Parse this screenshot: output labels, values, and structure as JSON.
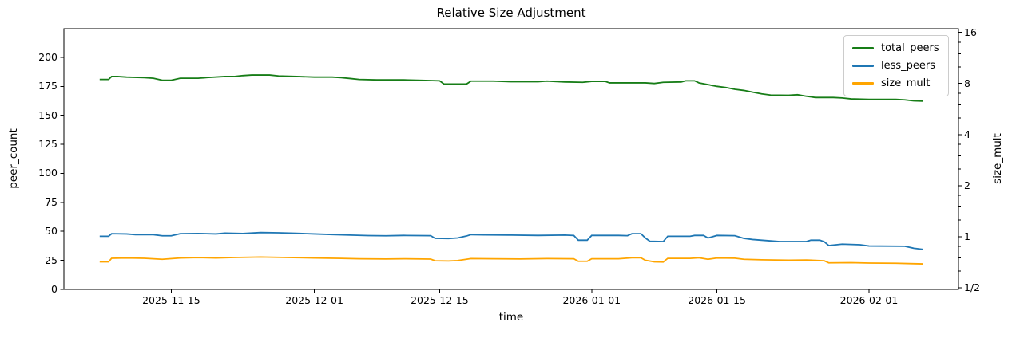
{
  "chart_data": {
    "type": "line",
    "title": "Relative Size Adjustment",
    "xlabel": "time",
    "ylabel_left": "peer_count",
    "ylabel_right": "size_mult",
    "grid": false,
    "legend_position": "upper right",
    "x_axis": {
      "type": "date",
      "domain": [
        "2025-11-03",
        "2026-02-11"
      ],
      "ticks": [
        {
          "value": "2025-11-15",
          "label": "2025-11-15"
        },
        {
          "value": "2025-12-01",
          "label": "2025-12-01"
        },
        {
          "value": "2025-12-15",
          "label": "2025-12-15"
        },
        {
          "value": "2026-01-01",
          "label": "2026-01-01"
        },
        {
          "value": "2026-01-15",
          "label": "2026-01-15"
        },
        {
          "value": "2026-02-01",
          "label": "2026-02-01"
        }
      ]
    },
    "y_axis_left": {
      "type": "linear",
      "domain": [
        0,
        224.7
      ],
      "ticks": [
        {
          "value": 0,
          "label": "0"
        },
        {
          "value": 25,
          "label": "25"
        },
        {
          "value": 50,
          "label": "50"
        },
        {
          "value": 75,
          "label": "75"
        },
        {
          "value": 100,
          "label": "100"
        },
        {
          "value": 125,
          "label": "125"
        },
        {
          "value": 150,
          "label": "150"
        },
        {
          "value": 175,
          "label": "175"
        },
        {
          "value": 200,
          "label": "200"
        }
      ]
    },
    "y_axis_right": {
      "type": "log2",
      "domain": [
        0.4883,
        16.84
      ],
      "ticks": [
        {
          "value": 16,
          "label": "16"
        },
        {
          "value": 8,
          "label": "8"
        },
        {
          "value": 4,
          "label": "4"
        },
        {
          "value": 2,
          "label": "2"
        },
        {
          "value": 1,
          "label": "1"
        },
        {
          "value": 0.5,
          "label": "1/2"
        }
      ],
      "minor_tick_subs": [
        1.25,
        1.5,
        1.75
      ]
    },
    "series": [
      {
        "name": "total_peers",
        "color": "#177d17",
        "axis": "left",
        "points": [
          [
            "2025-11-07",
            181
          ],
          [
            "2025-11-08",
            181
          ],
          [
            "2025-11-08T08:00",
            183.5
          ],
          [
            "2025-11-09",
            183.5
          ],
          [
            "2025-11-10",
            183
          ],
          [
            "2025-11-12",
            182.5
          ],
          [
            "2025-11-13",
            182
          ],
          [
            "2025-11-14",
            180.3
          ],
          [
            "2025-11-15",
            180.3
          ],
          [
            "2025-11-16",
            182
          ],
          [
            "2025-11-18",
            182
          ],
          [
            "2025-11-19",
            182.6
          ],
          [
            "2025-11-21",
            183.5
          ],
          [
            "2025-11-22",
            183.5
          ],
          [
            "2025-11-23",
            184.3
          ],
          [
            "2025-11-24",
            184.8
          ],
          [
            "2025-11-26",
            184.8
          ],
          [
            "2025-11-27",
            184
          ],
          [
            "2025-11-29",
            183.5
          ],
          [
            "2025-12-01",
            183
          ],
          [
            "2025-12-03",
            183
          ],
          [
            "2025-12-04",
            182.5
          ],
          [
            "2025-12-05",
            181.8
          ],
          [
            "2025-12-06",
            181
          ],
          [
            "2025-12-08",
            180.6
          ],
          [
            "2025-12-11",
            180.6
          ],
          [
            "2025-12-13",
            180.2
          ],
          [
            "2025-12-15",
            179.8
          ],
          [
            "2025-12-15T12:00",
            177
          ],
          [
            "2025-12-18",
            177
          ],
          [
            "2025-12-18T12:00",
            179.5
          ],
          [
            "2025-12-21",
            179.5
          ],
          [
            "2025-12-23",
            179
          ],
          [
            "2025-12-26",
            179
          ],
          [
            "2025-12-27",
            179.5
          ],
          [
            "2025-12-29",
            178.8
          ],
          [
            "2025-12-31",
            178.5
          ],
          [
            "2026-01-01",
            179.3
          ],
          [
            "2026-01-02T12:00",
            179.3
          ],
          [
            "2026-01-03",
            178
          ],
          [
            "2026-01-07",
            178
          ],
          [
            "2026-01-08",
            177.5
          ],
          [
            "2026-01-09",
            178.5
          ],
          [
            "2026-01-11",
            178.8
          ],
          [
            "2026-01-11T12:00",
            179.8
          ],
          [
            "2026-01-12T12:00",
            179.8
          ],
          [
            "2026-01-13",
            178
          ],
          [
            "2026-01-14",
            176.5
          ],
          [
            "2026-01-15",
            175
          ],
          [
            "2026-01-16",
            174
          ],
          [
            "2026-01-17",
            172.5
          ],
          [
            "2026-01-18",
            171.5
          ],
          [
            "2026-01-19",
            170
          ],
          [
            "2026-01-20",
            168.5
          ],
          [
            "2026-01-21",
            167.5
          ],
          [
            "2026-01-23",
            167.3
          ],
          [
            "2026-01-24",
            167.8
          ],
          [
            "2026-01-25",
            166.5
          ],
          [
            "2026-01-26",
            165.4
          ],
          [
            "2026-01-28",
            165.4
          ],
          [
            "2026-01-29",
            165
          ],
          [
            "2026-01-30",
            164.2
          ],
          [
            "2026-02-01",
            163.8
          ],
          [
            "2026-02-04",
            163.8
          ],
          [
            "2026-02-05",
            163.4
          ],
          [
            "2026-02-06",
            162.5
          ],
          [
            "2026-02-07",
            162.3
          ]
        ]
      },
      {
        "name": "less_peers",
        "color": "#1f77b4",
        "axis": "left",
        "points": [
          [
            "2025-11-07",
            45.8
          ],
          [
            "2025-11-08",
            45.8
          ],
          [
            "2025-11-08T08:00",
            48
          ],
          [
            "2025-11-10",
            47.8
          ],
          [
            "2025-11-11",
            47.2
          ],
          [
            "2025-11-13",
            47.2
          ],
          [
            "2025-11-14",
            46.2
          ],
          [
            "2025-11-15",
            46.2
          ],
          [
            "2025-11-16",
            48
          ],
          [
            "2025-11-18",
            48.2
          ],
          [
            "2025-11-20",
            47.8
          ],
          [
            "2025-11-21",
            48.5
          ],
          [
            "2025-11-23",
            48.2
          ],
          [
            "2025-11-25",
            49
          ],
          [
            "2025-11-27",
            48.8
          ],
          [
            "2025-11-29",
            48.3
          ],
          [
            "2025-12-01",
            47.8
          ],
          [
            "2025-12-03",
            47.3
          ],
          [
            "2025-12-05",
            46.8
          ],
          [
            "2025-12-07",
            46.4
          ],
          [
            "2025-12-09",
            46.2
          ],
          [
            "2025-12-11",
            46.5
          ],
          [
            "2025-12-14",
            46.3
          ],
          [
            "2025-12-14T12:00",
            44
          ],
          [
            "2025-12-16",
            43.8
          ],
          [
            "2025-12-17",
            44.3
          ],
          [
            "2025-12-18",
            46
          ],
          [
            "2025-12-18T12:00",
            47.2
          ],
          [
            "2025-12-20",
            47
          ],
          [
            "2025-12-23",
            46.8
          ],
          [
            "2025-12-26",
            46.5
          ],
          [
            "2025-12-29",
            46.8
          ],
          [
            "2025-12-30",
            46.5
          ],
          [
            "2025-12-30T12:00",
            42.4
          ],
          [
            "2025-12-31T12:00",
            42.4
          ],
          [
            "2026-01-01",
            46.5
          ],
          [
            "2026-01-04",
            46.5
          ],
          [
            "2026-01-05",
            46.3
          ],
          [
            "2026-01-05T12:00",
            48
          ],
          [
            "2026-01-06T12:00",
            48
          ],
          [
            "2026-01-07",
            44.3
          ],
          [
            "2026-01-07T12:00",
            41.5
          ],
          [
            "2026-01-09",
            41.2
          ],
          [
            "2026-01-09T12:00",
            45.8
          ],
          [
            "2026-01-12",
            45.8
          ],
          [
            "2026-01-12T12:00",
            46.5
          ],
          [
            "2026-01-13T12:00",
            46.5
          ],
          [
            "2026-01-14",
            44.3
          ],
          [
            "2026-01-15",
            46.5
          ],
          [
            "2026-01-17",
            46.3
          ],
          [
            "2026-01-18",
            44
          ],
          [
            "2026-01-19",
            43
          ],
          [
            "2026-01-20",
            42.4
          ],
          [
            "2026-01-22",
            41.2
          ],
          [
            "2026-01-25",
            41.2
          ],
          [
            "2026-01-25T12:00",
            42.4
          ],
          [
            "2026-01-26T12:00",
            42.4
          ],
          [
            "2026-01-27",
            41
          ],
          [
            "2026-01-27T12:00",
            37.8
          ],
          [
            "2026-01-29",
            39
          ],
          [
            "2026-01-31",
            38.5
          ],
          [
            "2026-02-01",
            37.4
          ],
          [
            "2026-02-05",
            37.2
          ],
          [
            "2026-02-06",
            35.5
          ],
          [
            "2026-02-07",
            34.5
          ]
        ]
      },
      {
        "name": "size_mult",
        "color": "#ffa500",
        "axis": "right",
        "points": [
          [
            "2025-11-07",
            0.71
          ],
          [
            "2025-11-08",
            0.71
          ],
          [
            "2025-11-08T08:00",
            0.745
          ],
          [
            "2025-11-10",
            0.748
          ],
          [
            "2025-11-12",
            0.745
          ],
          [
            "2025-11-14",
            0.735
          ],
          [
            "2025-11-16",
            0.748
          ],
          [
            "2025-11-18",
            0.752
          ],
          [
            "2025-11-20",
            0.748
          ],
          [
            "2025-11-22",
            0.753
          ],
          [
            "2025-11-25",
            0.758
          ],
          [
            "2025-11-28",
            0.753
          ],
          [
            "2025-12-01",
            0.748
          ],
          [
            "2025-12-04",
            0.744
          ],
          [
            "2025-12-06",
            0.74
          ],
          [
            "2025-12-09",
            0.738
          ],
          [
            "2025-12-11",
            0.74
          ],
          [
            "2025-12-14",
            0.737
          ],
          [
            "2025-12-14T12:00",
            0.72
          ],
          [
            "2025-12-16",
            0.718
          ],
          [
            "2025-12-17",
            0.722
          ],
          [
            "2025-12-18T12:00",
            0.742
          ],
          [
            "2025-12-21",
            0.74
          ],
          [
            "2025-12-24",
            0.738
          ],
          [
            "2025-12-27",
            0.742
          ],
          [
            "2025-12-30",
            0.74
          ],
          [
            "2025-12-30T12:00",
            0.715
          ],
          [
            "2025-12-31T12:00",
            0.715
          ],
          [
            "2026-01-01",
            0.74
          ],
          [
            "2026-01-04",
            0.74
          ],
          [
            "2026-01-05T12:00",
            0.75
          ],
          [
            "2026-01-06T12:00",
            0.75
          ],
          [
            "2026-01-07",
            0.725
          ],
          [
            "2026-01-08",
            0.71
          ],
          [
            "2026-01-09",
            0.708
          ],
          [
            "2026-01-09T12:00",
            0.744
          ],
          [
            "2026-01-12",
            0.744
          ],
          [
            "2026-01-13",
            0.75
          ],
          [
            "2026-01-14",
            0.735
          ],
          [
            "2026-01-15",
            0.748
          ],
          [
            "2026-01-17",
            0.746
          ],
          [
            "2026-01-18",
            0.735
          ],
          [
            "2026-01-20",
            0.73
          ],
          [
            "2026-01-23",
            0.726
          ],
          [
            "2026-01-25",
            0.728
          ],
          [
            "2026-01-27",
            0.72
          ],
          [
            "2026-01-27T12:00",
            0.7
          ],
          [
            "2026-01-30",
            0.702
          ],
          [
            "2026-02-01",
            0.698
          ],
          [
            "2026-02-04",
            0.696
          ],
          [
            "2026-02-06",
            0.692
          ],
          [
            "2026-02-07",
            0.69
          ]
        ]
      }
    ],
    "style": {
      "spine_color": "#000000",
      "tick_color": "#000000",
      "text_color": "#000000",
      "line_width": 1.8,
      "legend_border_color": "#cccccc",
      "background": "#ffffff"
    }
  }
}
